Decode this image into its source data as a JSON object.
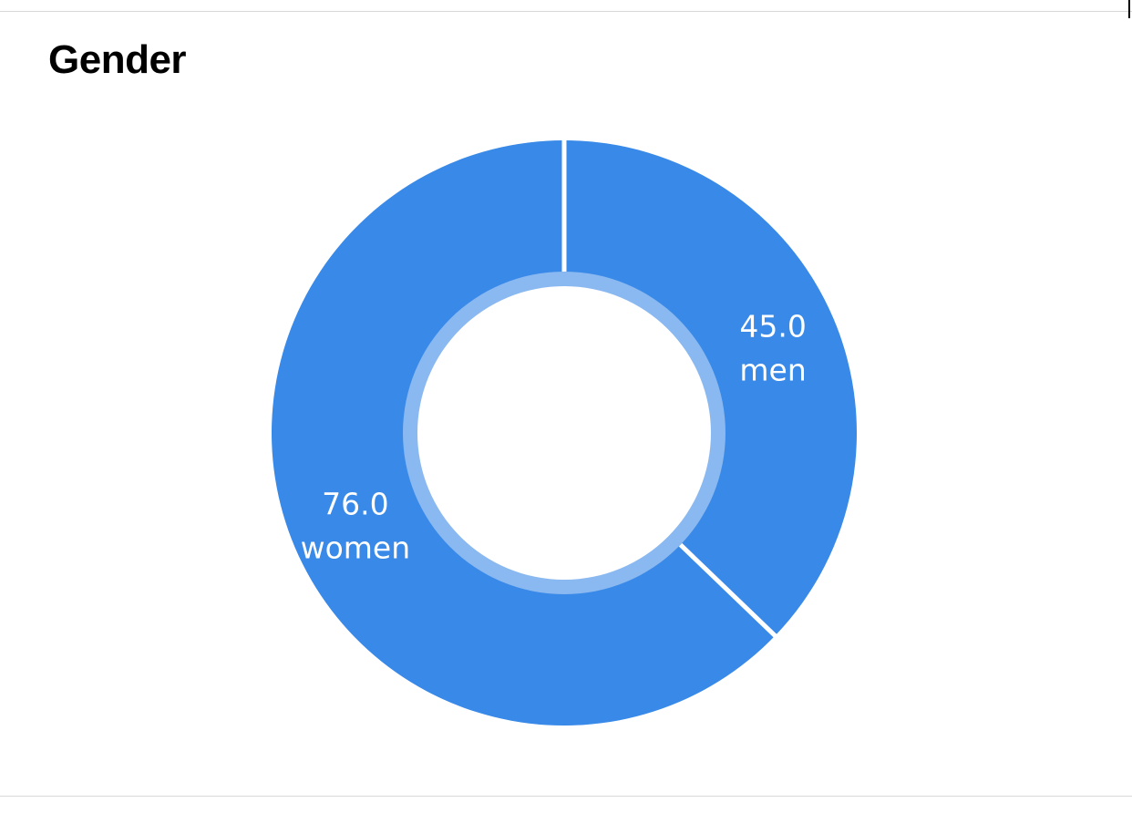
{
  "chart_data": {
    "type": "pie",
    "title": "Gender",
    "donut": true,
    "start_angle_deg": 0,
    "direction": "clockwise",
    "slices": [
      {
        "label": "men",
        "value": 45.0,
        "display": "45.0",
        "color": "#3889E8"
      },
      {
        "label": "women",
        "value": 76.0,
        "display": "76.0",
        "color": "#3889E8"
      }
    ],
    "inner_ring_color": "#8AB8F0",
    "separator_color": "#ffffff"
  }
}
